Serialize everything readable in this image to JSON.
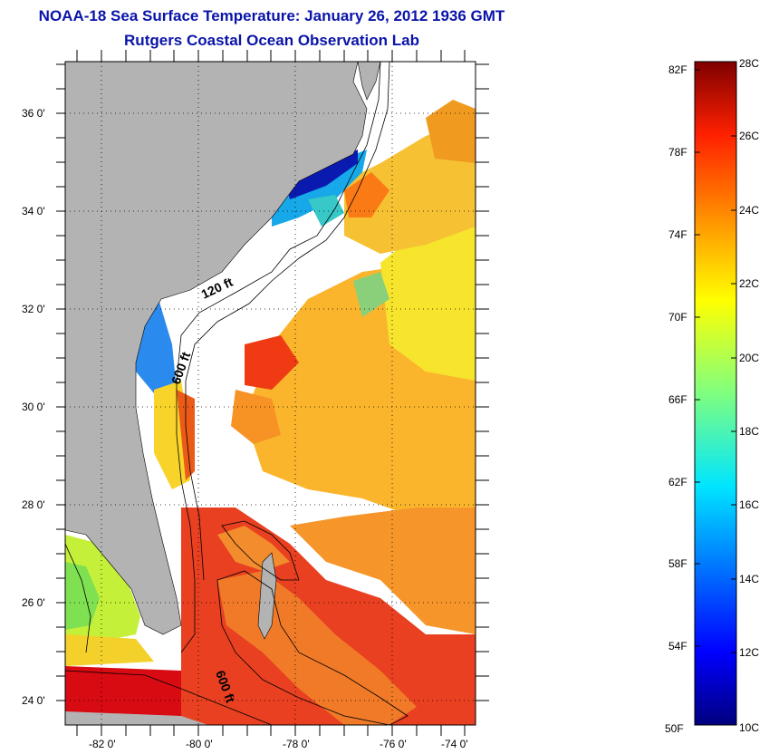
{
  "title_line1": "NOAA-18 Sea Surface Temperature:  January 26, 2012 1936 GMT",
  "title_line2": "Rutgers Coastal Ocean Observation Lab",
  "map": {
    "lon_labels": [
      "-82 0'",
      "-80 0'",
      "-78 0'",
      "-76 0'",
      "-74 0'"
    ],
    "lat_labels": [
      "36 0'",
      "34 0'",
      "32 0'",
      "30 0'",
      "28 0'",
      "26 0'",
      "24 0'"
    ],
    "contour_labels": [
      "120 ft",
      "600 ft",
      "600 ft"
    ],
    "colors": {
      "land": "#b3b3b3",
      "cloud_nodata": "#ffffff",
      "contour": "#000000"
    }
  },
  "colorbar": {
    "fahrenheit_labels": [
      "82F",
      "78F",
      "74F",
      "70F",
      "66F",
      "62F",
      "58F",
      "54F",
      "50F"
    ],
    "celsius_labels": [
      "28C",
      "26C",
      "24C",
      "22C",
      "20C",
      "18C",
      "16C",
      "14C",
      "12C",
      "10C"
    ],
    "colormap": "jet"
  }
}
